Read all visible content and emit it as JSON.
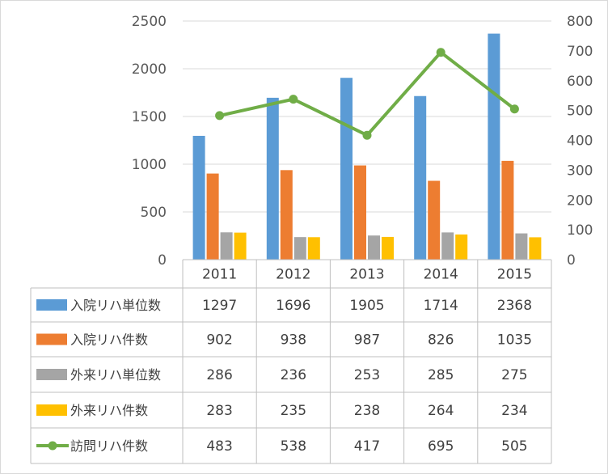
{
  "chart_data": {
    "type": "bar",
    "title": "",
    "categories": [
      "2011",
      "2012",
      "2013",
      "2014",
      "2015"
    ],
    "y_left": {
      "min": 0,
      "max": 2500,
      "ticks": [
        0,
        500,
        1000,
        1500,
        2000,
        2500
      ]
    },
    "y_right": {
      "min": 0,
      "max": 800,
      "ticks": [
        0,
        100,
        200,
        300,
        400,
        500,
        600,
        700,
        800
      ]
    },
    "grid": true,
    "legend_placement": "data-table",
    "series": [
      {
        "name": "入院リハ単位数",
        "type": "bar",
        "axis": "left",
        "color": "#5b9bd5",
        "values": [
          1297,
          1696,
          1905,
          1714,
          2368
        ]
      },
      {
        "name": "入院リハ件数",
        "type": "bar",
        "axis": "left",
        "color": "#ed7d31",
        "values": [
          902,
          938,
          987,
          826,
          1035
        ]
      },
      {
        "name": "外来リハ単位数",
        "type": "bar",
        "axis": "left",
        "color": "#a5a5a5",
        "values": [
          286,
          236,
          253,
          285,
          275
        ]
      },
      {
        "name": "外来リハ件数",
        "type": "bar",
        "axis": "left",
        "color": "#ffc000",
        "values": [
          283,
          235,
          238,
          264,
          234
        ]
      },
      {
        "name": "訪問リハ件数",
        "type": "line",
        "axis": "right",
        "color": "#70ad47",
        "values": [
          483,
          538,
          417,
          695,
          505
        ]
      }
    ]
  }
}
